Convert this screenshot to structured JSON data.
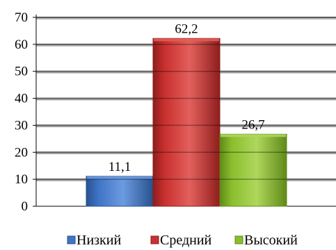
{
  "chart_data": {
    "type": "bar",
    "title": "",
    "xlabel": "",
    "ylabel": "",
    "ylim": [
      0,
      70
    ],
    "yticks": [
      0,
      10,
      20,
      30,
      40,
      50,
      60,
      70
    ],
    "grid": true,
    "legend_position": "bottom",
    "series": [
      {
        "name": "Низкий",
        "value": 11.1,
        "label": "11,1",
        "color": "#3f74c6",
        "dark": "#27528f",
        "light": "#6b9be0"
      },
      {
        "name": "Средний",
        "value": 62.2,
        "label": "62,2",
        "color": "#c9312f",
        "dark": "#8e1e1d",
        "light": "#e2605c"
      },
      {
        "name": "Высокий",
        "value": 26.7,
        "label": "26,7",
        "color": "#8bbe2e",
        "dark": "#5f8a18",
        "light": "#aed75c"
      }
    ]
  }
}
